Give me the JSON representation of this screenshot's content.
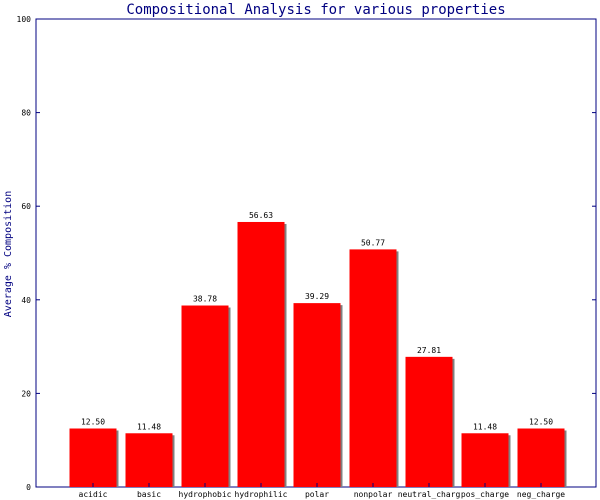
{
  "chart_data": {
    "type": "bar",
    "title": "Compositional Analysis for various properties",
    "xlabel": "",
    "ylabel": "Average % Composition",
    "categories": [
      "acidic",
      "basic",
      "hydrophobic",
      "hydrophilic",
      "polar",
      "nonpolar",
      "neutral_charge",
      "pos_charge",
      "neg_charge"
    ],
    "category_labels_shown": [
      "acidic",
      "basic",
      "hydrophobic",
      "hydrophilic",
      "polar",
      "nonpolar",
      "neutral_charg",
      "pos_charge",
      "neg_charge"
    ],
    "values": [
      12.5,
      11.48,
      38.78,
      56.63,
      39.29,
      50.77,
      27.81,
      11.48,
      12.5
    ],
    "value_labels": [
      "12.50",
      "11.48",
      "38.78",
      "56.63",
      "39.29",
      "50.77",
      "27.81",
      "11.48",
      "12.50"
    ],
    "ylim": [
      0,
      100
    ],
    "yticks": [
      0,
      20,
      40,
      60,
      80,
      100
    ],
    "grid": false,
    "colors": {
      "bar": "#ff0000",
      "bar_shadow": "#808080",
      "axis": "#000080",
      "title": "#000080",
      "text": "#000000"
    }
  }
}
